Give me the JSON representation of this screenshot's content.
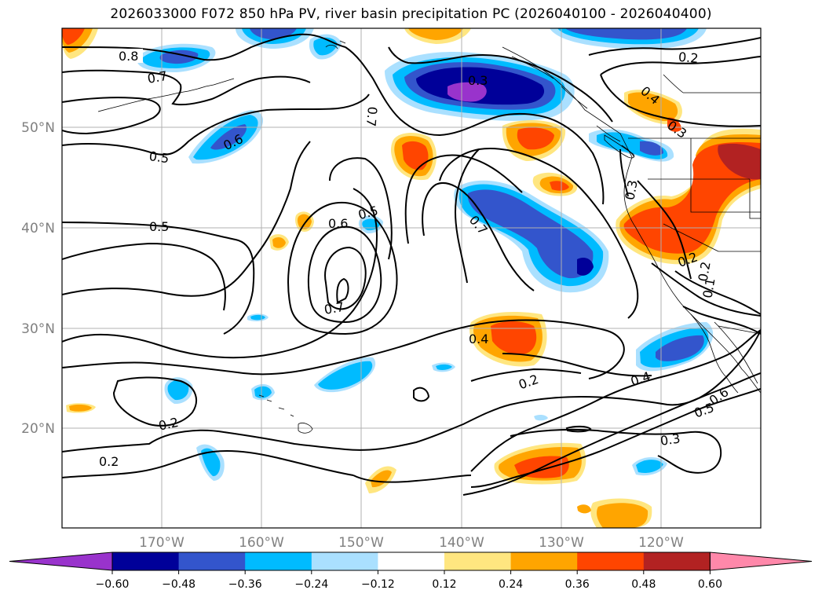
{
  "title": "2026033000 F072 850 hPa PV, river basin precipitation PC (2026040100 - 2026040400)",
  "longitude_labels": [
    "170°W",
    "160°W",
    "150°W",
    "140°W",
    "130°W",
    "120°W"
  ],
  "latitude_labels": [
    "50°N",
    "40°N",
    "30°N",
    "20°N"
  ],
  "colorbar": {
    "tick_labels": [
      "−0.60",
      "−0.48",
      "−0.36",
      "−0.24",
      "−0.12",
      "0.12",
      "0.24",
      "0.36",
      "0.48",
      "0.60"
    ],
    "colors": [
      "#9933cc",
      "#000099",
      "#3355cc",
      "#00bbff",
      "#aae0ff",
      "#ffffff",
      "#ffe680",
      "#ffa500",
      "#ff4500",
      "#b22222",
      "#ff88aa"
    ]
  },
  "contour_labels": [
    {
      "text": "0.8"
    },
    {
      "text": "0.7"
    },
    {
      "text": "0.6"
    },
    {
      "text": "0.5"
    },
    {
      "text": "0.5"
    },
    {
      "text": "0.7"
    },
    {
      "text": "0.3"
    },
    {
      "text": "0.5"
    },
    {
      "text": "0.6"
    },
    {
      "text": "0.7"
    },
    {
      "text": "0.7"
    },
    {
      "text": "0.4"
    },
    {
      "text": "0.2"
    },
    {
      "text": "0.2"
    },
    {
      "text": "0.2"
    },
    {
      "text": "0.4"
    },
    {
      "text": "0.3"
    },
    {
      "text": "0.3"
    },
    {
      "text": "0.2"
    },
    {
      "text": "0.2"
    },
    {
      "text": "0.4"
    },
    {
      "text": "0.5"
    },
    {
      "text": "0.6"
    },
    {
      "text": "0.3"
    },
    {
      "text": "0.2"
    },
    {
      "text": "0.1"
    }
  ]
}
